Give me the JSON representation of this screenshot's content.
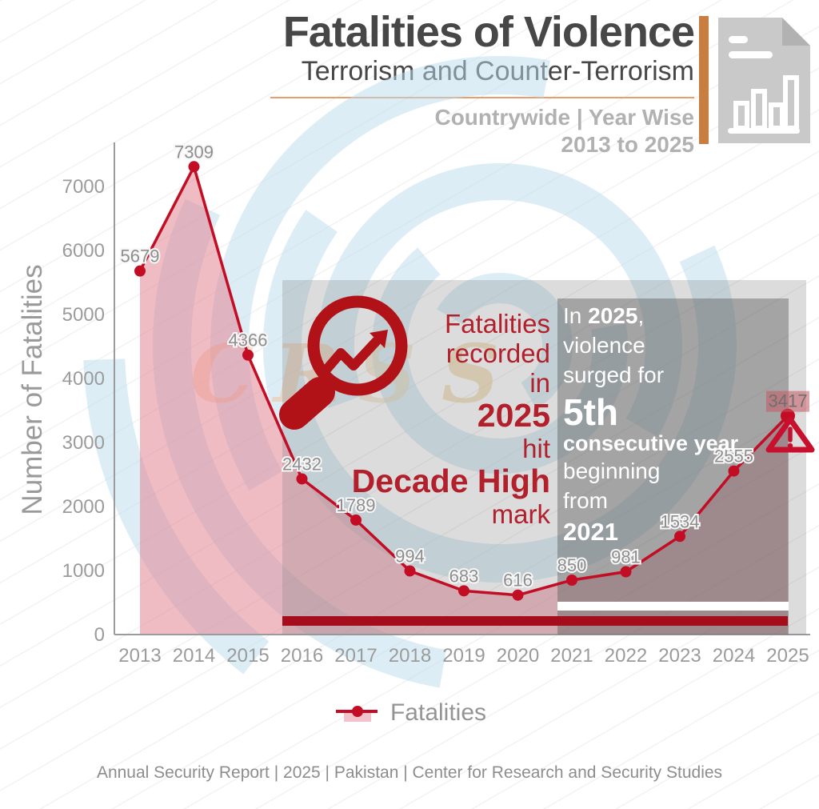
{
  "header": {
    "title": "Fatalities of Violence",
    "subtitle": "Terrorism and Counter-Terrorism",
    "scope_line1": "Countrywide | Year Wise",
    "scope_line2": "2013 to 2025"
  },
  "chart_data": {
    "type": "line",
    "x": [
      2013,
      2014,
      2015,
      2016,
      2017,
      2018,
      2019,
      2020,
      2021,
      2022,
      2023,
      2024,
      2025
    ],
    "series": [
      {
        "name": "Fatalities",
        "values": [
          5679,
          7309,
          4366,
          2432,
          1789,
          994,
          683,
          616,
          850,
          981,
          1534,
          2555,
          3417
        ]
      }
    ],
    "ylabel": "Number of Fatalities",
    "yticks": [
      0,
      1000,
      2000,
      3000,
      4000,
      5000,
      6000,
      7000
    ],
    "ylim": [
      0,
      7600
    ],
    "grid": false,
    "legend_position": "bottom",
    "line_color": "#c20d24",
    "marker_color": "#c20d24",
    "area_color": "rgba(226,122,138,0.5)",
    "label_color": "#8e8e8e",
    "highlight_last_label": true,
    "highlight_last_bg": "rgba(198,88,99,0.55)"
  },
  "annotations": {
    "left_note": {
      "lines": [
        {
          "segs": [
            {
              "t": "Fatalities"
            }
          ]
        },
        {
          "segs": [
            {
              "t": "recorded"
            }
          ]
        },
        {
          "segs": [
            {
              "t": "in"
            }
          ]
        },
        {
          "segs": [
            {
              "t": "2025"
            }
          ],
          "size": "lg"
        },
        {
          "segs": [
            {
              "t": "hit"
            }
          ]
        },
        {
          "segs": [
            {
              "t": "Decade High"
            }
          ],
          "size": "lg"
        },
        {
          "segs": [
            {
              "t": "mark"
            }
          ]
        }
      ]
    },
    "right_note": {
      "lines": [
        {
          "segs": [
            {
              "t": "In "
            },
            {
              "t": "2025",
              "b": true
            },
            {
              "t": ","
            }
          ]
        },
        {
          "segs": [
            {
              "t": "violence"
            }
          ]
        },
        {
          "segs": [
            {
              "t": "surged for"
            }
          ]
        },
        {
          "segs": [
            {
              "t": "5th"
            }
          ],
          "size": "xl"
        },
        {
          "segs": [
            {
              "t": "consecutive year"
            }
          ],
          "size": "md"
        },
        {
          "segs": [
            {
              "t": "beginning"
            }
          ]
        },
        {
          "segs": [
            {
              "t": "from"
            }
          ]
        },
        {
          "segs": [
            {
              "t": "2021"
            }
          ],
          "size": "num"
        }
      ]
    }
  },
  "legend": {
    "label": "Fatalities"
  },
  "footer": {
    "text": "Annual Security Report | 2025 | Pakistan | Center for Research and Security Studies"
  },
  "watermark": {
    "text": "CRSS"
  },
  "colors": {
    "accent_orange": "#c87e41",
    "rule_orange": "#e79e6e",
    "overlay_light": "rgba(128,128,128,0.28)",
    "overlay_dark": "rgba(96,96,96,0.45)",
    "bar_dark_red": "#a50d1c",
    "bar_white": "#ffffff",
    "watermark_blue": "#badcec",
    "note_red": "#b2202c",
    "icon_red": "#b01218",
    "warning_red": "#c8102e",
    "axis_gray": "#9b9b9b"
  }
}
